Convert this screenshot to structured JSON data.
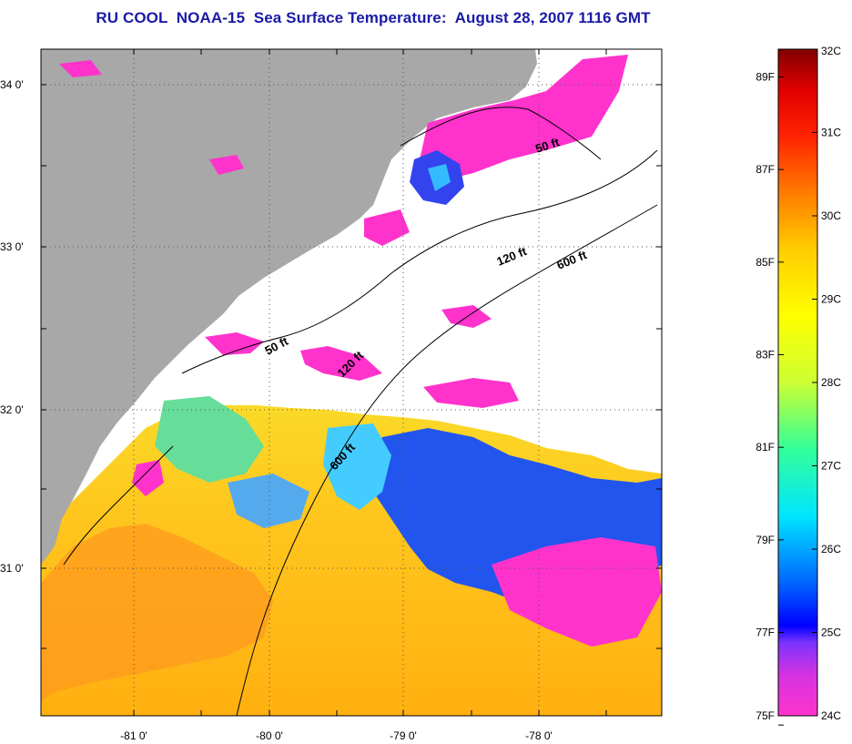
{
  "title": "RU COOL  NOAA-15  Sea Surface Temperature:  August 28, 2007 1116 GMT",
  "map": {
    "lon_range": [
      -81.7,
      -77.2
    ],
    "lat_range": [
      30.2,
      34.2
    ],
    "lat_ticks": [
      {
        "value": 34,
        "label": "34 0'"
      },
      {
        "value": 33,
        "label": "33 0'"
      },
      {
        "value": 32,
        "label": "32 0'"
      },
      {
        "value": 31,
        "label": "31 0'"
      }
    ],
    "lon_ticks": [
      {
        "value": -81,
        "label": "-81 0'"
      },
      {
        "value": -80,
        "label": "-80 0'"
      },
      {
        "value": -79,
        "label": "-79 0'"
      },
      {
        "value": -78,
        "label": "-78 0'"
      }
    ],
    "grid": "dotted",
    "colors": {
      "land": "#a8a8a8",
      "cloud": "#ffffff",
      "frame": "#000000"
    },
    "contour_labels": [
      {
        "text": "50 ft",
        "id": "contour-50ft-north"
      },
      {
        "text": "120 ft",
        "id": "contour-120ft-north"
      },
      {
        "text": "600 ft",
        "id": "contour-600ft-north"
      },
      {
        "text": "50 ft",
        "id": "contour-50ft-south"
      },
      {
        "text": "120 ft",
        "id": "contour-120ft-south"
      },
      {
        "text": "600 ft",
        "id": "contour-600ft-south"
      }
    ]
  },
  "colorbar": {
    "celsius_labels": [
      "32C",
      "31C",
      "30C",
      "29C",
      "28C",
      "27C",
      "26C",
      "25C",
      "24C"
    ],
    "fahrenheit_labels": [
      "89F",
      "87F",
      "85F",
      "83F",
      "81F",
      "79F",
      "77F",
      "75F"
    ],
    "range_c": [
      24,
      32
    ],
    "stops": [
      {
        "pos": 0.0,
        "color": "#ff33cc"
      },
      {
        "pos": 0.06,
        "color": "#d633e0"
      },
      {
        "pos": 0.11,
        "color": "#7a33ff"
      },
      {
        "pos": 0.135,
        "color": "#0000ff"
      },
      {
        "pos": 0.2,
        "color": "#0066ff"
      },
      {
        "pos": 0.3,
        "color": "#00e5ff"
      },
      {
        "pos": 0.4,
        "color": "#33ff99"
      },
      {
        "pos": 0.5,
        "color": "#ccff33"
      },
      {
        "pos": 0.6,
        "color": "#ffff00"
      },
      {
        "pos": 0.7,
        "color": "#ffcc00"
      },
      {
        "pos": 0.78,
        "color": "#ff8000"
      },
      {
        "pos": 0.87,
        "color": "#ff2200"
      },
      {
        "pos": 0.94,
        "color": "#e00000"
      },
      {
        "pos": 1.0,
        "color": "#800000"
      }
    ]
  }
}
